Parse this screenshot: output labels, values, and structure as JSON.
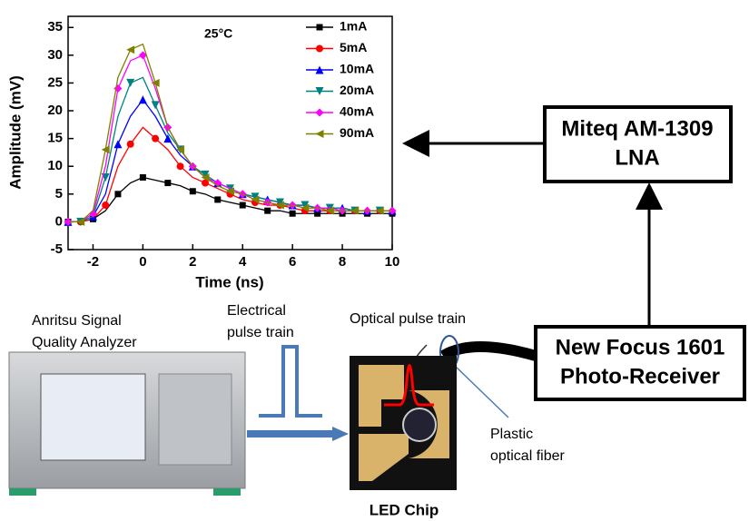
{
  "chart_data": {
    "type": "line",
    "x_label": "Time (ns)",
    "y_label": "Amplitude (mV)",
    "annotation": "25°C",
    "x": [
      -3,
      -2.5,
      -2,
      -1.5,
      -1,
      -0.5,
      0,
      0.5,
      1,
      1.5,
      2,
      2.5,
      3,
      3.5,
      4,
      4.5,
      5,
      5.5,
      6,
      6.5,
      7,
      7.5,
      8,
      8.5,
      9,
      9.5,
      10
    ],
    "xlim": [
      -3,
      10
    ],
    "xticks": [
      -2,
      0,
      2,
      4,
      6,
      8,
      10
    ],
    "ylim": [
      -5,
      37
    ],
    "yticks": [
      -5,
      0,
      5,
      10,
      15,
      20,
      25,
      30,
      35
    ],
    "legend": "upper right",
    "series": [
      {
        "name": "1mA",
        "color": "#000000",
        "marker": "square",
        "values": [
          0,
          0,
          0.5,
          2,
          5,
          7,
          8,
          7.5,
          7,
          6.5,
          5.5,
          5,
          4,
          3.5,
          3,
          2.5,
          2,
          2,
          1.5,
          1.5,
          1.5,
          1.5,
          1.5,
          1.5,
          1.5,
          1.5,
          1.5
        ]
      },
      {
        "name": "5mA",
        "color": "#ff0000",
        "marker": "circle",
        "values": [
          0,
          0,
          0.5,
          3,
          10,
          14,
          17,
          15,
          13,
          10,
          8,
          7,
          6,
          5,
          4,
          3.5,
          3,
          3,
          2.5,
          2,
          2,
          2,
          2,
          2,
          2,
          2,
          2
        ]
      },
      {
        "name": "10mA",
        "color": "#0000ff",
        "marker": "triangle-up",
        "values": [
          0,
          0,
          1,
          5,
          14,
          19,
          22,
          19,
          15,
          12,
          10,
          8,
          7,
          6,
          5,
          4.5,
          4,
          3.5,
          3,
          3,
          2.5,
          2.5,
          2.5,
          2,
          2,
          2,
          2
        ]
      },
      {
        "name": "20mA",
        "color": "#008080",
        "marker": "triangle-down",
        "values": [
          0,
          0,
          1,
          8,
          19,
          25,
          26,
          21,
          16,
          13,
          10,
          8.5,
          7,
          6,
          5,
          4.5,
          4,
          3.5,
          3,
          3,
          2.5,
          2.5,
          2.5,
          2,
          2,
          2,
          2
        ]
      },
      {
        "name": "40mA",
        "color": "#ff00ff",
        "marker": "diamond",
        "values": [
          0,
          0,
          1.5,
          10,
          24,
          29,
          30,
          24,
          17,
          13,
          10,
          8,
          7,
          6,
          5,
          4,
          3.5,
          3,
          3,
          2.5,
          2.5,
          2.5,
          2,
          2,
          2,
          2,
          2
        ]
      },
      {
        "name": "90mA",
        "color": "#808000",
        "marker": "triangle-left",
        "values": [
          0,
          0,
          2,
          13,
          26,
          31,
          32,
          25,
          17,
          13,
          10,
          8,
          6.5,
          5.5,
          5,
          4,
          3.5,
          3,
          3,
          2.5,
          2.5,
          2,
          2,
          2,
          2,
          2,
          2
        ]
      }
    ]
  },
  "diagram": {
    "lna": [
      "Miteq AM-1309",
      "LNA"
    ],
    "receiver": [
      "New Focus 1601",
      "Photo-Receiver"
    ],
    "analyzer": [
      "Anritsu Signal",
      "Quality Analyzer"
    ],
    "electrical": [
      "Electrical",
      "pulse train"
    ],
    "optical": "Optical pulse train",
    "fiber": [
      "Plastic",
      "optical fiber"
    ],
    "led": "LED Chip"
  }
}
